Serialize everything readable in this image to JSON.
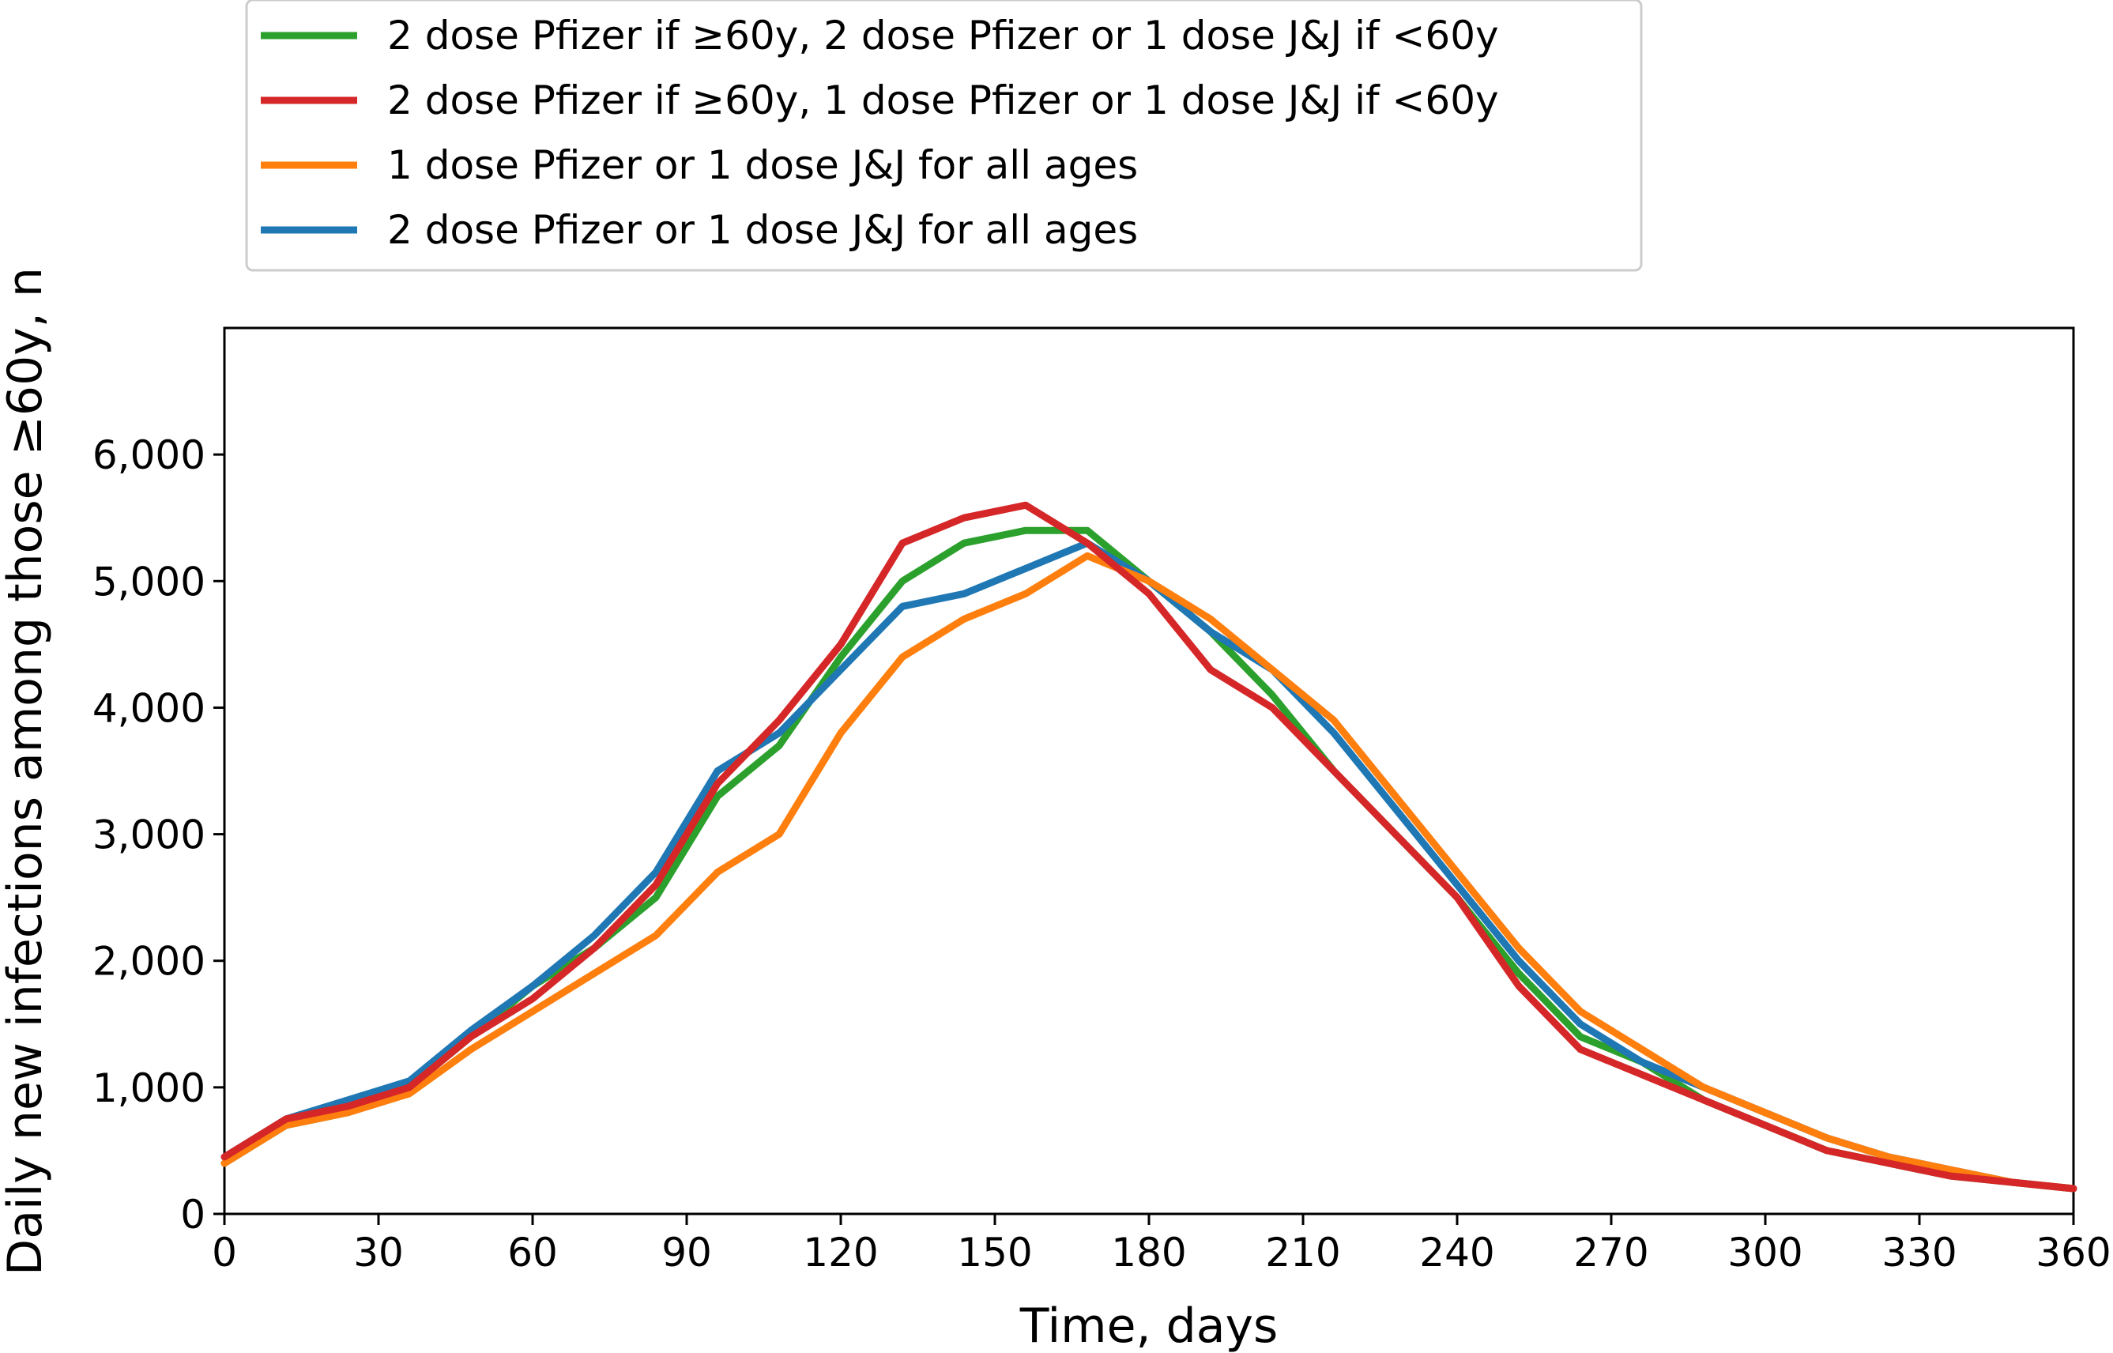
{
  "chart_data": {
    "type": "line",
    "xlabel": "Time, days",
    "ylabel": "Daily new infections among those ≥60y, n",
    "xlim": [
      0,
      360
    ],
    "ylim": [
      0,
      7000
    ],
    "xticks": [
      "0",
      "30",
      "60",
      "90",
      "120",
      "150",
      "180",
      "210",
      "240",
      "270",
      "300",
      "330",
      "360"
    ],
    "yticks": [
      "0",
      "1,000",
      "2,000",
      "3,000",
      "4,000",
      "5,000",
      "6,000"
    ],
    "grid": false,
    "legend_position": "top-left, above plot",
    "x": [
      0,
      12,
      24,
      36,
      48,
      60,
      72,
      84,
      96,
      108,
      120,
      132,
      144,
      156,
      168,
      180,
      192,
      204,
      216,
      228,
      240,
      252,
      264,
      276,
      288,
      300,
      312,
      324,
      336,
      348,
      360
    ],
    "series": [
      {
        "name": "2 dose Pfizer if ≥60y, 2 dose Pfizer or 1 dose J&J if <60y",
        "color": "#2ca02c",
        "values": [
          400,
          700,
          800,
          1000,
          1400,
          1800,
          2100,
          2500,
          3300,
          3700,
          4400,
          5000,
          5300,
          5400,
          5400,
          5000,
          4600,
          4100,
          3500,
          3000,
          2500,
          1900,
          1400,
          1200,
          900,
          700,
          500,
          400,
          300,
          250,
          200
        ]
      },
      {
        "name": "2 dose Pfizer if ≥60y, 1 dose Pfizer or 1 dose J&J if <60y",
        "color": "#d62728",
        "values": [
          450,
          750,
          850,
          1000,
          1400,
          1700,
          2100,
          2600,
          3400,
          3900,
          4500,
          5300,
          5500,
          5600,
          5300,
          4900,
          4300,
          4000,
          3500,
          3000,
          2500,
          1800,
          1300,
          1100,
          900,
          700,
          500,
          400,
          300,
          250,
          200
        ]
      },
      {
        "name": "1 dose Pfizer or 1 dose J&J for all ages",
        "color": "#ff7f0e",
        "values": [
          400,
          700,
          800,
          950,
          1300,
          1600,
          1900,
          2200,
          2700,
          3000,
          3800,
          4400,
          4700,
          4900,
          5200,
          5000,
          4700,
          4300,
          3900,
          3300,
          2700,
          2100,
          1600,
          1300,
          1000,
          800,
          600,
          450,
          350,
          250,
          200
        ]
      },
      {
        "name": "2 dose Pfizer or 1 dose J&J for all ages",
        "color": "#1f77b4",
        "values": [
          450,
          750,
          900,
          1050,
          1450,
          1800,
          2200,
          2700,
          3500,
          3800,
          4300,
          4800,
          4900,
          5100,
          5300,
          5000,
          4600,
          4300,
          3800,
          3200,
          2600,
          2000,
          1500,
          1200,
          1000,
          800,
          600,
          450,
          350,
          250,
          200
        ]
      }
    ]
  }
}
